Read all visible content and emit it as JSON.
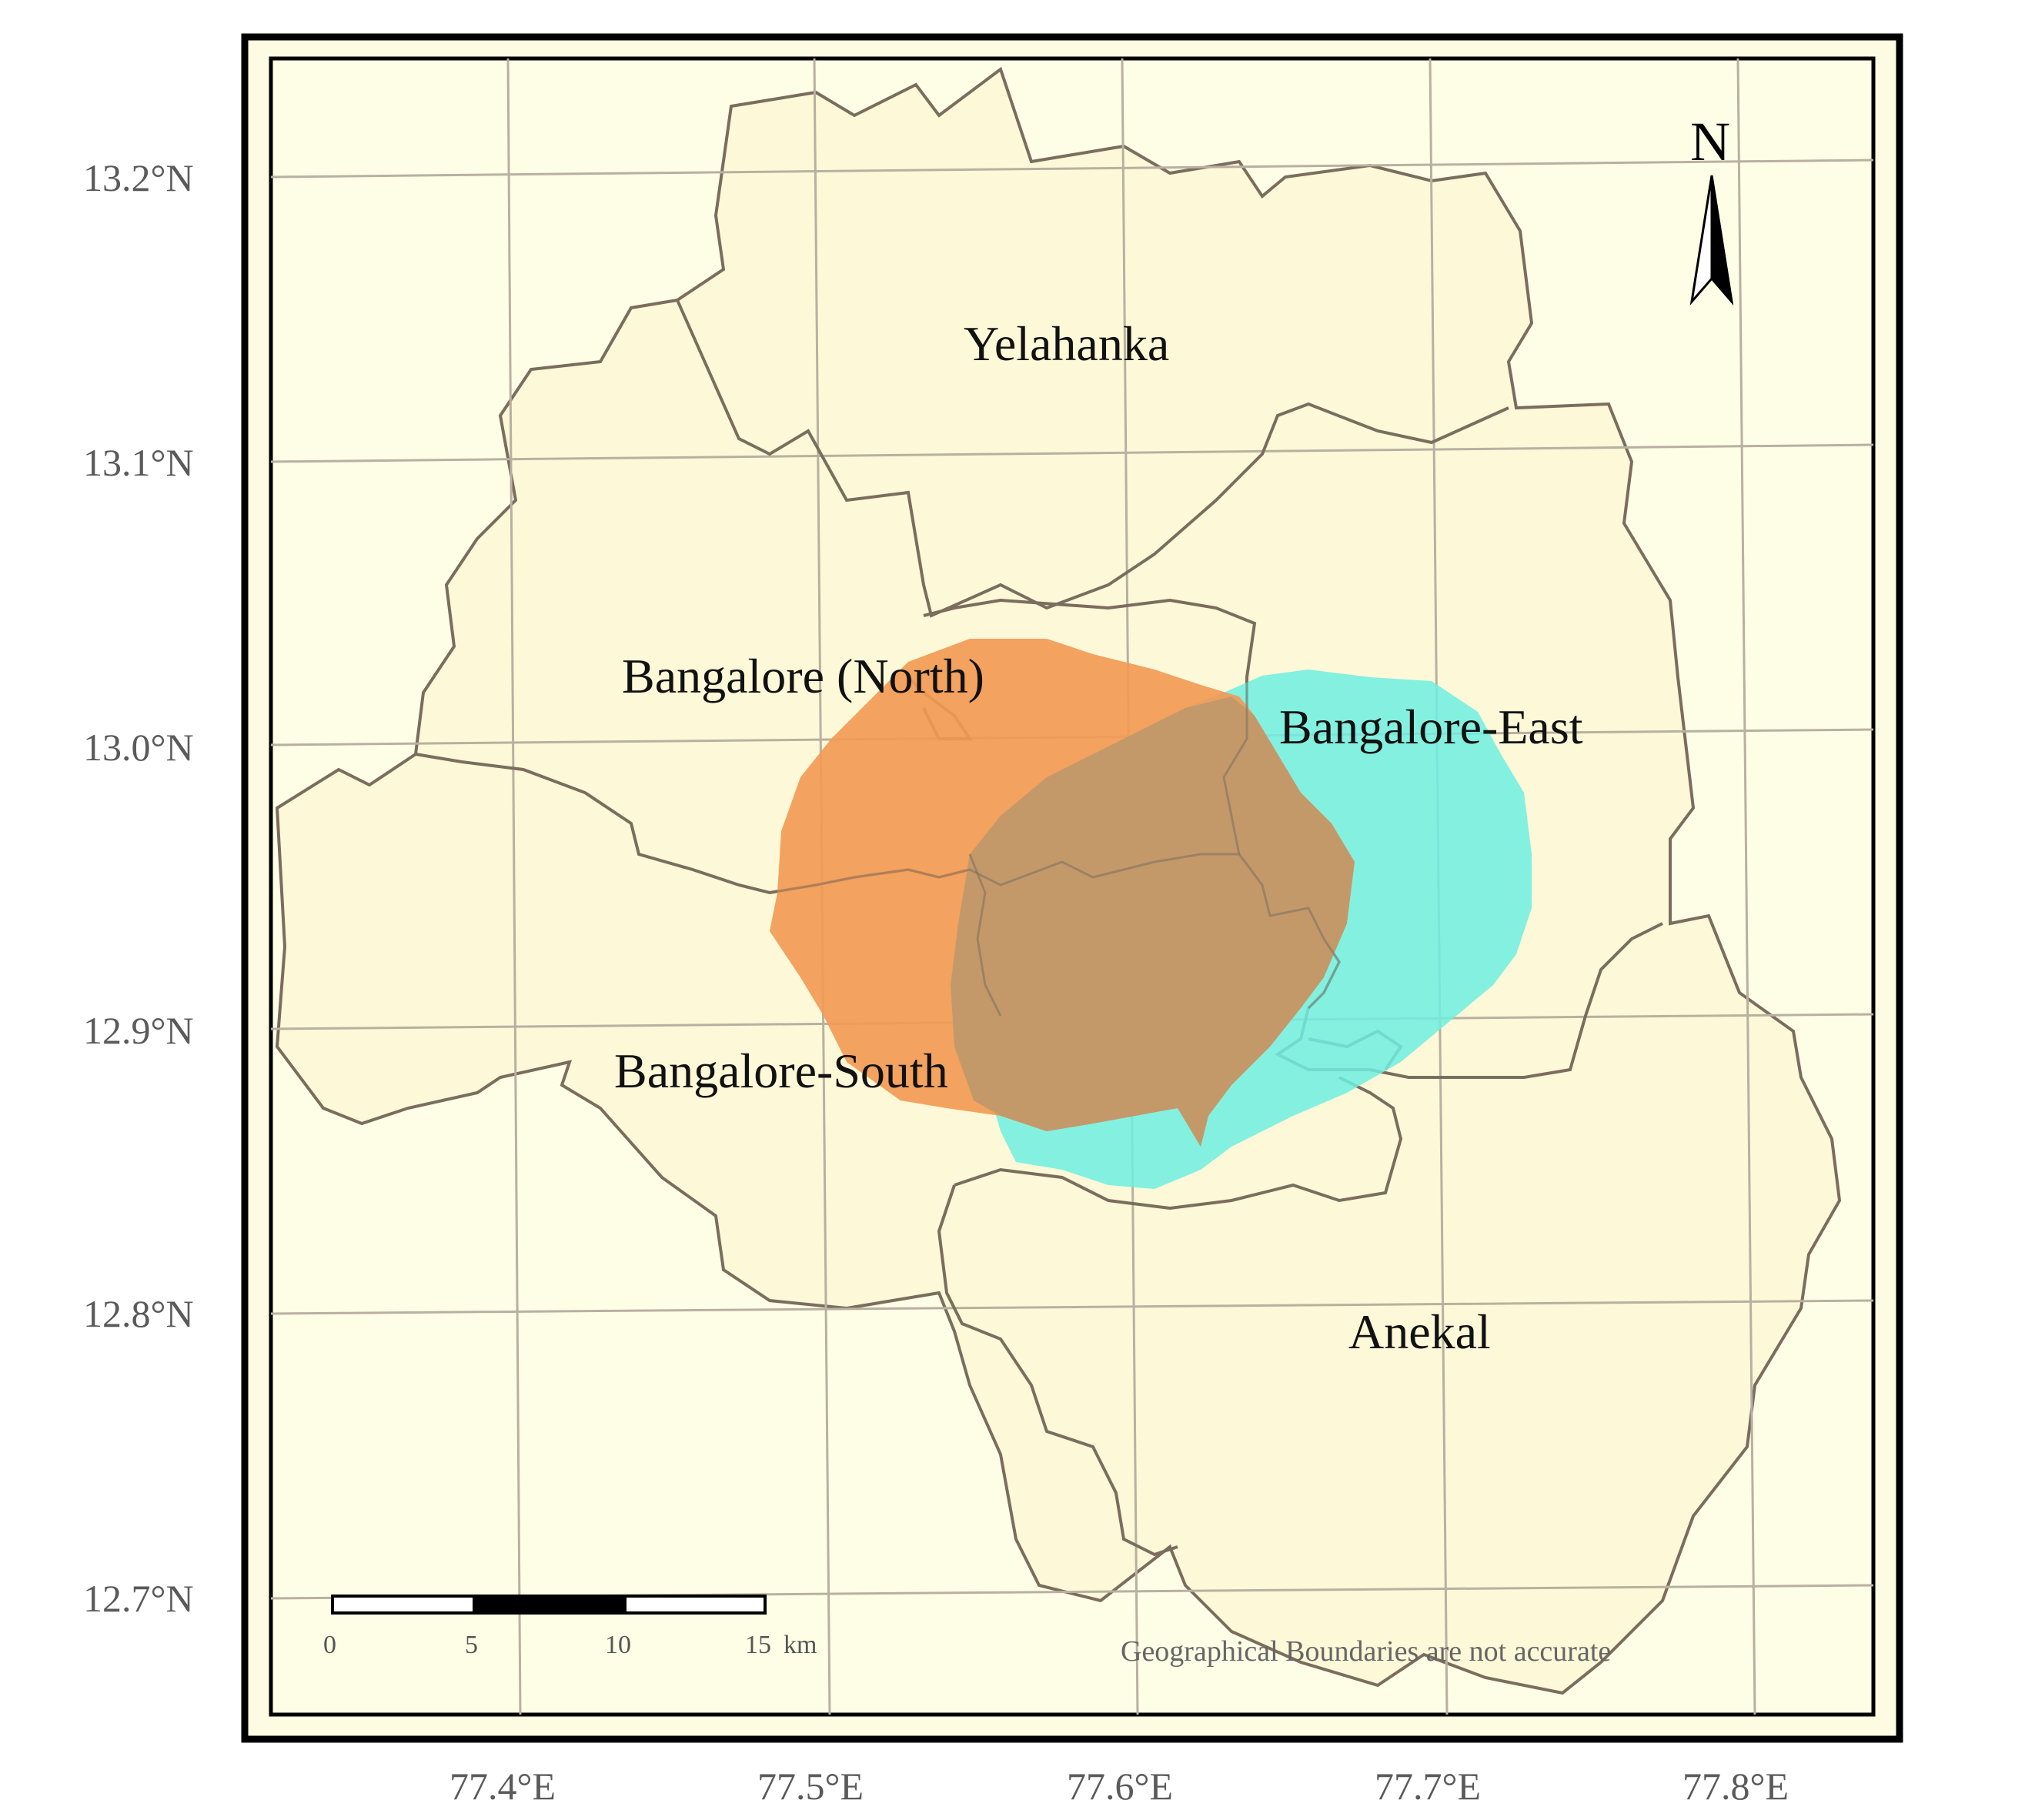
{
  "map": {
    "districts": [
      {
        "name": "Yelahanka"
      },
      {
        "name": "Bangalore (North)"
      },
      {
        "name": "Bangalore-East"
      },
      {
        "name": "Bangalore-South"
      },
      {
        "name": "Anekal"
      }
    ],
    "lat_ticks": [
      "13.2°N",
      "13.1°N",
      "13.0°N",
      "12.9°N",
      "12.8°N",
      "12.7°N"
    ],
    "lon_ticks": [
      "77.4°E",
      "77.5°E",
      "77.6°E",
      "77.7°E",
      "77.8°E"
    ],
    "north_arrow": {
      "label": "N",
      "icon": "north-arrow-icon"
    },
    "scale_bar": {
      "labels": [
        "0",
        "5",
        "10",
        "15"
      ],
      "unit": "km"
    },
    "note": "Geographical Boundaries are not accurate",
    "colors": {
      "land": "#fdfbe2",
      "boundary": "#7b6d5e",
      "grid": "#b8b0a0",
      "zone_orange": "#f29a55",
      "zone_cyan": "#6eeee2",
      "overlap": "#c4996a",
      "frame": "#000000"
    }
  }
}
